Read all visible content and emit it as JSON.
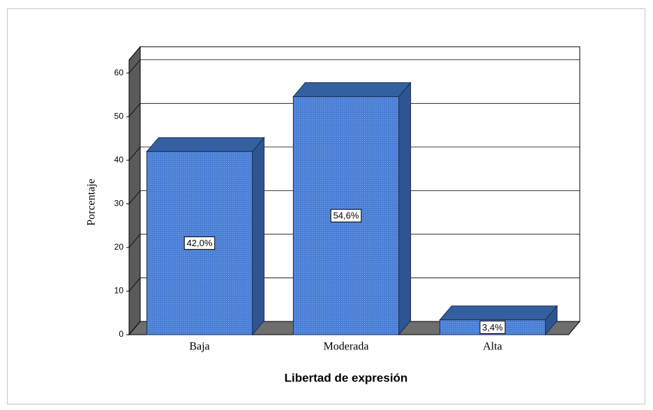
{
  "chart_data": {
    "type": "bar3d",
    "x_label": "Libertad de expresión",
    "y_label": "Porcentaje",
    "categories": [
      "Baja",
      "Moderada",
      "Alta"
    ],
    "values": [
      42.0,
      54.6,
      3.4
    ],
    "value_labels": [
      "42,0%",
      "54,6%",
      "3,4%"
    ],
    "color": "#4a7fd6",
    "ylim": [
      0,
      63
    ],
    "yticks": [
      0,
      10,
      20,
      30,
      40,
      50,
      60
    ],
    "grid": true
  }
}
